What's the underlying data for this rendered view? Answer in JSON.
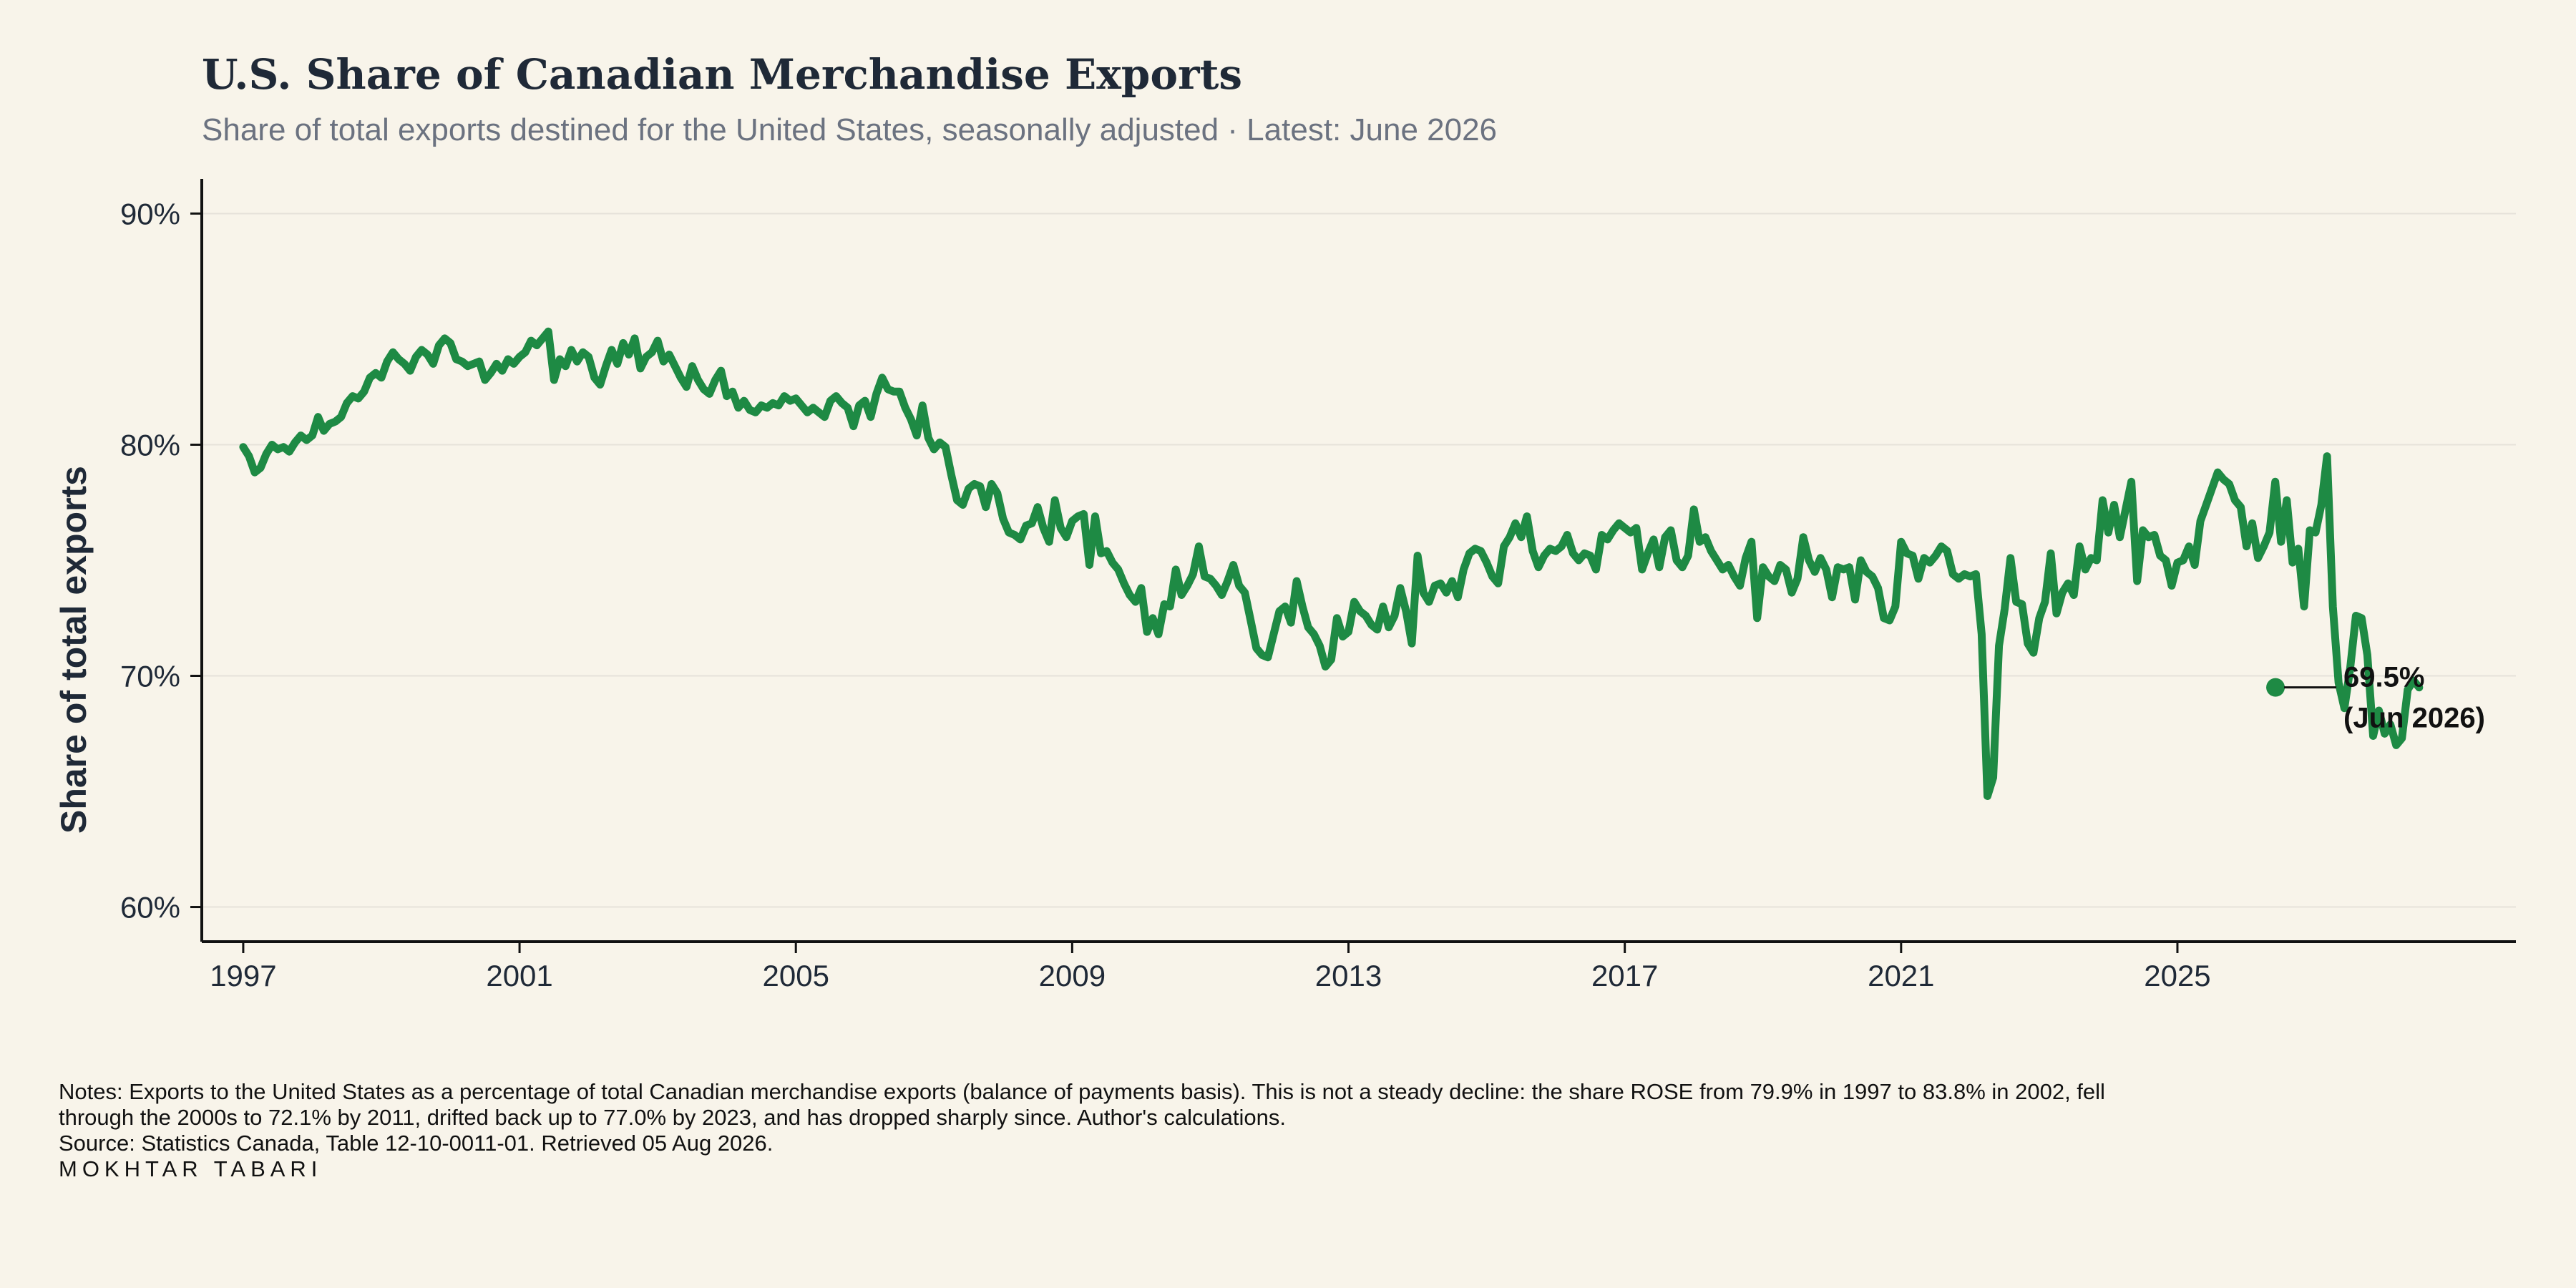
{
  "colors": {
    "background": "#f8f4ea",
    "line": "#1e8a44",
    "axis": "#111111",
    "grid": "#e6e2da",
    "subtitle": "#6b7280"
  },
  "chart_data": {
    "type": "line",
    "title": "U.S. Share of Canadian Merchandise Exports",
    "subtitle": "Share of total exports destined for the United States, seasonally adjusted · Latest: June 2026",
    "ylabel": "Share of total exports",
    "xlabel": "",
    "x_unit": "year (decimal, monthly data)",
    "xlim": [
      1996.4,
      2029.9
    ],
    "ylim": [
      58.5,
      91.5
    ],
    "y_ticks": [
      60,
      70,
      80,
      90
    ],
    "y_tick_labels": [
      "60%",
      "70%",
      "80%",
      "90%"
    ],
    "x_ticks": [
      1997,
      2001,
      2005,
      2009,
      2013,
      2017,
      2021,
      2025
    ],
    "x_tick_labels": [
      "1997",
      "2001",
      "2005",
      "2009",
      "2013",
      "2017",
      "2021",
      "2025"
    ],
    "grid": "horizontal",
    "legend": "none",
    "series": [
      {
        "start": "1997-01",
        "frequency": "monthly",
        "values": [
          79.9,
          79.5,
          78.8,
          79.0,
          79.6,
          80.0,
          79.8,
          79.9,
          79.7,
          80.1,
          80.4,
          80.2,
          80.4,
          81.2,
          80.6,
          80.9,
          81.0,
          81.2,
          81.8,
          82.1,
          82.0,
          82.3,
          82.9,
          83.1,
          82.9,
          83.6,
          84.0,
          83.7,
          83.5,
          83.2,
          83.8,
          84.1,
          83.9,
          83.5,
          84.3,
          84.6,
          84.4,
          83.7,
          83.6,
          83.4,
          83.5,
          83.6,
          82.8,
          83.1,
          83.5,
          83.2,
          83.7,
          83.5,
          83.8,
          84.0,
          84.5,
          84.3,
          84.6,
          84.9,
          82.8,
          83.7,
          83.4,
          84.1,
          83.6,
          84.0,
          83.8,
          82.9,
          82.6,
          83.4,
          84.1,
          83.5,
          84.4,
          83.9,
          84.6,
          83.3,
          83.8,
          84.0,
          84.5,
          83.6,
          83.9,
          83.4,
          82.9,
          82.5,
          83.4,
          82.8,
          82.4,
          82.2,
          82.8,
          83.2,
          82.1,
          82.3,
          81.6,
          81.9,
          81.5,
          81.4,
          81.7,
          81.6,
          81.8,
          81.7,
          82.1,
          81.9,
          82.0,
          81.7,
          81.4,
          81.6,
          81.4,
          81.2,
          81.9,
          82.1,
          81.8,
          81.6,
          80.8,
          81.7,
          81.9,
          81.2,
          82.2,
          82.9,
          82.4,
          82.3,
          82.3,
          81.6,
          81.1,
          80.4,
          81.7,
          80.3,
          79.8,
          80.1,
          79.9,
          78.7,
          77.6,
          77.4,
          78.1,
          78.3,
          78.2,
          77.3,
          78.3,
          77.9,
          76.8,
          76.2,
          76.1,
          75.9,
          76.5,
          76.6,
          77.3,
          76.4,
          75.8,
          77.6,
          76.4,
          76.0,
          76.7,
          76.9,
          77.0,
          74.8,
          76.9,
          75.3,
          75.4,
          74.9,
          74.6,
          74.0,
          73.5,
          73.2,
          73.8,
          71.9,
          72.5,
          71.8,
          73.1,
          73.0,
          74.6,
          73.5,
          73.9,
          74.4,
          75.6,
          74.3,
          74.2,
          73.9,
          73.5,
          74.1,
          74.8,
          73.9,
          73.6,
          72.4,
          71.2,
          70.9,
          70.8,
          71.8,
          72.8,
          73.0,
          72.3,
          74.1,
          73.0,
          72.1,
          71.8,
          71.3,
          70.4,
          70.7,
          72.5,
          71.7,
          71.9,
          73.2,
          72.8,
          72.6,
          72.2,
          72.0,
          73.0,
          72.1,
          72.6,
          73.8,
          72.8,
          71.4,
          75.2,
          73.6,
          73.2,
          73.9,
          74.0,
          73.6,
          74.1,
          73.4,
          74.6,
          75.3,
          75.5,
          75.4,
          74.9,
          74.3,
          74.0,
          75.6,
          76.0,
          76.6,
          76.0,
          76.9,
          75.4,
          74.7,
          75.2,
          75.5,
          75.4,
          75.6,
          76.1,
          75.3,
          75.0,
          75.3,
          75.2,
          74.6,
          76.1,
          75.9,
          76.3,
          76.6,
          76.4,
          76.2,
          76.4,
          74.6,
          75.3,
          75.9,
          74.7,
          76.0,
          76.3,
          75.0,
          74.7,
          75.2,
          77.2,
          75.8,
          76.0,
          75.4,
          75.0,
          74.6,
          74.8,
          74.3,
          73.9,
          75.1,
          75.8,
          72.5,
          74.7,
          74.3,
          74.1,
          74.8,
          74.6,
          73.6,
          74.2,
          76.0,
          75.0,
          74.5,
          75.1,
          74.6,
          73.4,
          74.7,
          74.6,
          74.7,
          73.3,
          75.0,
          74.5,
          74.3,
          73.8,
          72.5,
          72.4,
          73.0,
          75.8,
          75.3,
          75.2,
          74.2,
          75.1,
          74.9,
          75.2,
          75.6,
          75.4,
          74.4,
          74.2,
          74.4,
          74.3,
          74.4,
          71.8,
          64.8,
          65.6,
          71.3,
          72.9,
          75.1,
          73.2,
          73.1,
          71.4,
          71.0,
          72.5,
          73.2,
          75.3,
          72.7,
          73.6,
          74.0,
          73.5,
          75.6,
          74.6,
          75.1,
          75.0,
          77.6,
          76.2,
          77.4,
          76.0,
          77.2,
          78.4,
          74.1,
          76.3,
          76.0,
          76.1,
          75.2,
          75.0,
          73.9,
          74.9,
          75.0,
          75.6,
          74.8,
          76.7,
          77.4,
          78.1,
          78.8,
          78.5,
          78.3,
          77.6,
          77.3,
          75.6,
          76.6,
          75.1,
          75.6,
          76.2,
          78.4,
          75.8,
          77.6,
          74.9,
          75.5,
          73.0,
          76.3,
          76.2,
          77.4,
          79.5,
          73.0,
          69.7,
          68.6,
          70.3,
          72.6,
          72.5,
          70.9,
          67.4,
          68.5,
          67.5,
          67.9,
          67.0,
          67.3,
          69.4,
          69.8,
          69.5
        ]
      }
    ],
    "annotation": {
      "value_label": "69.5%",
      "date_label": "(Jun 2026)",
      "x": 2026.42,
      "y": 69.5
    }
  },
  "footer": {
    "notes_line1": "Notes: Exports to the United States as a percentage of total Canadian merchandise exports (balance of payments basis). This is not a steady decline: the share ROSE from 79.9% in 1997 to 83.8% in 2002, fell",
    "notes_line2": "through the 2000s to 72.1% by 2011, drifted back up to 77.0% by 2023, and has dropped sharply since. Author's calculations.",
    "source": "Source: Statistics Canada, Table 12-10-0011-01. Retrieved 05 Aug 2026.",
    "author": "MOKHTAR  TABARI"
  }
}
